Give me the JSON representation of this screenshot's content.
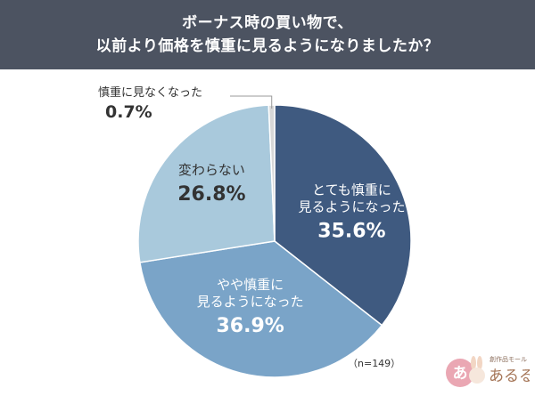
{
  "header": {
    "line1": "ボーナス時の買い物で、",
    "line2": "以前より価格を慎重に見るようになりましたか？"
  },
  "colors": {
    "header_bg": "#4c5361",
    "very_careful": "#3f5a80",
    "somewhat_careful": "#7aa4c8",
    "unchanged": "#a9c9dc",
    "not_careful": "#d7d7d7"
  },
  "chart_data": {
    "type": "pie",
    "title": "ボーナス時の買い物で、以前より価格を慎重に見るようになりましたか？",
    "start": "top",
    "direction": "clockwise",
    "slices": [
      {
        "label_lines": [
          "とても慎重に",
          "見るようになった"
        ],
        "value": 35.6,
        "display": "35.6%",
        "color": "#3f5a80"
      },
      {
        "label_lines": [
          "やや慎重に",
          "見るようになった"
        ],
        "value": 36.9,
        "display": "36.9%",
        "color": "#7aa4c8"
      },
      {
        "label_lines": [
          "変わらない"
        ],
        "value": 26.8,
        "display": "26.8%",
        "color": "#a9c9dc"
      },
      {
        "label_lines": [
          "慎重に見なくなった"
        ],
        "value": 0.7,
        "display": "0.7%",
        "color": "#d7d7d7"
      }
    ],
    "note": "（n=149）"
  },
  "logo": {
    "small_text": "創作品モール",
    "brand_text": "あるる",
    "badge_char": "あ"
  }
}
